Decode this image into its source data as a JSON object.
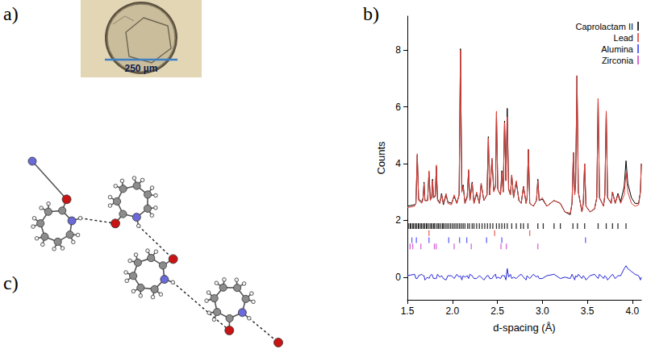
{
  "panel_labels": {
    "a": "a)",
    "b": "b)",
    "c": "c)"
  },
  "photo": {
    "scale_bar": "250 µm"
  },
  "chart_data": {
    "type": "line",
    "x_label": "d-spacing (Å)",
    "y_label": "Counts",
    "x": [
      1.5,
      1.58,
      1.595,
      1.61,
      1.625,
      1.66,
      1.675,
      1.685,
      1.695,
      1.725,
      1.74,
      1.755,
      1.77,
      1.78,
      1.79,
      1.81,
      1.822,
      1.835,
      1.86,
      1.88,
      1.9,
      1.93,
      1.95,
      1.99,
      2.02,
      2.05,
      2.075,
      2.09,
      2.105,
      2.12,
      2.14,
      2.165,
      2.18,
      2.195,
      2.22,
      2.24,
      2.27,
      2.3,
      2.32,
      2.35,
      2.385,
      2.4,
      2.415,
      2.44,
      2.46,
      2.48,
      2.49,
      2.505,
      2.535,
      2.55,
      2.565,
      2.58,
      2.595,
      2.61,
      2.625,
      2.645,
      2.66,
      2.68,
      2.71,
      2.74,
      2.765,
      2.79,
      2.82,
      2.83,
      2.845,
      2.86,
      2.9,
      2.935,
      2.95,
      2.965,
      3.0,
      3.05,
      3.13,
      3.2,
      3.25,
      3.31,
      3.33,
      3.345,
      3.36,
      3.37,
      3.385,
      3.4,
      3.44,
      3.455,
      3.47,
      3.485,
      3.53,
      3.58,
      3.605,
      3.62,
      3.635,
      3.68,
      3.695,
      3.71,
      3.725,
      3.765,
      3.78,
      3.81,
      3.84,
      3.87,
      3.91,
      3.93,
      3.95,
      3.99,
      4.03,
      4.07,
      4.09,
      4.1
    ],
    "series": [
      {
        "type": "line",
        "color": "#000000",
        "values": [
          2.5,
          2.55,
          2.6,
          4.3,
          2.75,
          2.65,
          2.8,
          3.35,
          2.7,
          2.7,
          3.7,
          2.75,
          2.8,
          3.45,
          2.8,
          2.85,
          3.9,
          2.75,
          2.6,
          2.95,
          2.55,
          2.9,
          2.65,
          2.6,
          2.85,
          2.6,
          2.9,
          8.05,
          3.0,
          3.25,
          2.6,
          2.85,
          3.75,
          2.7,
          3.35,
          2.6,
          2.95,
          2.6,
          3.3,
          2.7,
          2.9,
          4.95,
          2.9,
          4.15,
          3.05,
          3.2,
          5.8,
          3.1,
          2.9,
          3.75,
          3.0,
          5.5,
          3.4,
          5.95,
          3.1,
          2.9,
          3.6,
          2.8,
          3.35,
          2.7,
          2.6,
          3.2,
          2.6,
          2.8,
          4.5,
          2.6,
          2.5,
          2.7,
          3.45,
          2.7,
          2.75,
          2.5,
          2.7,
          2.6,
          2.3,
          2.2,
          2.6,
          4.4,
          2.9,
          3.3,
          7.1,
          3.0,
          2.3,
          2.6,
          4.0,
          2.5,
          2.3,
          2.4,
          2.8,
          6.3,
          2.8,
          2.5,
          2.9,
          5.85,
          2.8,
          2.6,
          3.0,
          2.6,
          2.95,
          2.65,
          3.2,
          4.1,
          3.3,
          2.8,
          2.6,
          2.6,
          3.0,
          4.0
        ]
      },
      {
        "type": "line",
        "color": "#e0403a",
        "values": [
          2.45,
          2.5,
          2.6,
          4.35,
          2.7,
          2.6,
          2.75,
          3.3,
          2.7,
          2.7,
          3.75,
          2.7,
          2.8,
          3.4,
          2.8,
          2.9,
          3.95,
          2.7,
          2.6,
          2.9,
          2.6,
          2.95,
          2.6,
          2.55,
          2.9,
          2.6,
          2.9,
          8.0,
          3.0,
          3.2,
          2.6,
          2.8,
          3.8,
          2.7,
          3.3,
          2.6,
          3.0,
          2.6,
          3.3,
          2.7,
          2.9,
          4.9,
          2.9,
          4.2,
          3.0,
          3.2,
          5.85,
          3.1,
          2.9,
          3.7,
          3.0,
          5.45,
          3.4,
          5.65,
          3.1,
          2.9,
          3.6,
          2.8,
          3.4,
          2.7,
          2.6,
          3.2,
          2.6,
          2.8,
          4.5,
          2.6,
          2.5,
          2.7,
          3.4,
          2.7,
          2.8,
          2.5,
          2.7,
          2.6,
          2.3,
          2.25,
          2.6,
          4.4,
          2.9,
          3.3,
          7.1,
          3.0,
          2.3,
          2.6,
          4.0,
          2.5,
          2.3,
          2.4,
          2.8,
          6.3,
          2.8,
          2.5,
          2.9,
          5.85,
          2.8,
          2.6,
          3.0,
          2.6,
          2.9,
          2.6,
          2.9,
          3.7,
          3.0,
          2.6,
          2.5,
          2.55,
          3.0,
          4.0
        ]
      },
      {
        "type": "line",
        "color": "#2323d8",
        "values": [
          0.05,
          0.1,
          -0.05,
          -0.05,
          0.05,
          0.1,
          0.05,
          0.05,
          -0.1,
          0,
          -0.05,
          0.05,
          0.1,
          0.05,
          -0.05,
          -0.05,
          -0.05,
          0.1,
          0,
          0.05,
          -0.05,
          -0.1,
          0.05,
          0.05,
          -0.05,
          0.1,
          0,
          0.05,
          -0.1,
          0.05,
          0,
          0.05,
          -0.05,
          0.1,
          0.05,
          -0.05,
          -0.05,
          0.05,
          0,
          -0.1,
          0.05,
          0.05,
          -0.05,
          -0.05,
          0.05,
          0.1,
          -0.05,
          0,
          -0.05,
          0.05,
          0.05,
          0.05,
          -0.1,
          0.3,
          0,
          0.1,
          -0.05,
          0,
          -0.05,
          0.05,
          0.1,
          0,
          -0.1,
          0.05,
          0,
          -0.05,
          0.1,
          0,
          0.05,
          -0.05,
          -0.05,
          0.05,
          0.1,
          -0.05,
          0,
          -0.05,
          0.1,
          0,
          -0.1,
          0.05,
          0,
          0.1,
          -0.05,
          0.05,
          0,
          -0.1,
          0.05,
          0.1,
          0,
          -0.05,
          0.1,
          -0.05,
          0.05,
          0,
          -0.1,
          0.05,
          0.1,
          -0.05,
          0.05,
          0.05,
          0.3,
          0.4,
          0.3,
          0.2,
          0.1,
          0.05,
          -0.1,
          0
        ]
      },
      {
        "type": "ticks",
        "name": "Caprolactam II",
        "color": "#000000",
        "y": 1.8,
        "x": [
          1.51,
          1.53,
          1.54,
          1.56,
          1.57,
          1.59,
          1.6,
          1.62,
          1.63,
          1.65,
          1.66,
          1.68,
          1.69,
          1.71,
          1.72,
          1.74,
          1.76,
          1.77,
          1.79,
          1.8,
          1.82,
          1.84,
          1.85,
          1.87,
          1.89,
          1.9,
          1.92,
          1.94,
          1.96,
          1.98,
          2.0,
          2.02,
          2.04,
          2.06,
          2.08,
          2.1,
          2.12,
          2.14,
          2.17,
          2.19,
          2.22,
          2.24,
          2.27,
          2.3,
          2.33,
          2.36,
          2.39,
          2.42,
          2.45,
          2.49,
          2.52,
          2.55,
          2.58,
          2.61,
          2.66,
          2.71,
          2.76,
          2.79,
          2.84,
          2.95,
          3.01,
          3.13,
          3.2,
          3.34,
          3.39,
          3.47,
          3.62,
          3.71,
          3.78,
          3.84,
          3.93
        ]
      },
      {
        "type": "ticks",
        "name": "Lead",
        "color": "#e0403a",
        "y": 1.55,
        "x": [
          1.74,
          2.47,
          2.86
        ]
      },
      {
        "type": "ticks",
        "name": "Alumina",
        "color": "#3a3aff",
        "y": 1.3,
        "x": [
          1.55,
          1.6,
          1.74,
          1.96,
          2.08,
          2.16,
          2.38,
          2.55,
          3.48
        ]
      },
      {
        "type": "ticks",
        "name": "Zirconia",
        "color": "#d040d0",
        "y": 1.08,
        "x": [
          1.53,
          1.56,
          1.65,
          1.8,
          1.82,
          2.02,
          2.21,
          2.54,
          2.6,
          2.95
        ]
      }
    ],
    "xlim": [
      1.5,
      4.1
    ],
    "xticks": [
      1.5,
      {
        "value": 2,
        "label": "2.0"
      },
      2.5,
      {
        "value": 3,
        "label": "3.0"
      },
      3.5,
      {
        "value": 4,
        "label": "4.0"
      }
    ],
    "ylim": [
      -0.8,
      9.2
    ],
    "yticks": [
      0,
      2,
      4,
      6,
      8
    ],
    "grid": false,
    "legend": "top-right"
  }
}
